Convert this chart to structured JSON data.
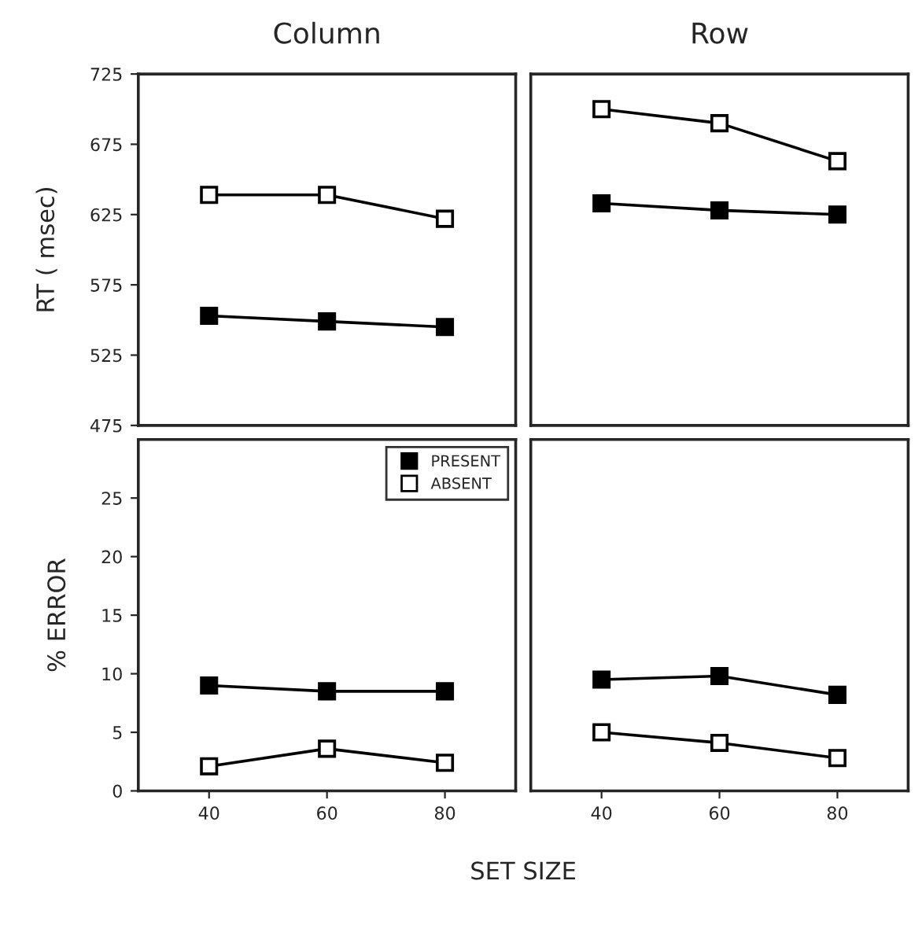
{
  "chart_data": [
    {
      "type": "line",
      "title": "Column",
      "ylabel": "RT ( msec)",
      "x": [
        40,
        60,
        80
      ],
      "xlim": [
        28,
        92
      ],
      "ylim": [
        475,
        725
      ],
      "yticks": [
        475,
        525,
        575,
        625,
        675,
        725
      ],
      "tick_labels": "y",
      "marker": "square",
      "grid": false,
      "legend": false,
      "series": [
        {
          "color": "#000000",
          "values": [
            553,
            549,
            545
          ]
        },
        {
          "color": "#ffffff",
          "values": [
            639,
            639,
            622
          ]
        }
      ]
    },
    {
      "type": "line",
      "title": "Row",
      "x": [
        40,
        60,
        80
      ],
      "xlim": [
        28,
        92
      ],
      "ylim": [
        475,
        725
      ],
      "tick_labels": false,
      "marker": "square",
      "grid": false,
      "legend": false,
      "series": [
        {
          "color": "#000000",
          "values": [
            633,
            628,
            625
          ]
        },
        {
          "color": "#ffffff",
          "values": [
            700,
            690,
            663
          ]
        }
      ]
    },
    {
      "type": "line",
      "ylabel": "% ERROR",
      "xlabel": "SET SIZE",
      "x": [
        40,
        60,
        80
      ],
      "xlim": [
        28,
        92
      ],
      "xticks": [
        40,
        60,
        80
      ],
      "ylim": [
        0,
        30
      ],
      "yticks": [
        0,
        5,
        10,
        15,
        20,
        25
      ],
      "marker": "square",
      "grid": false,
      "legend": "top right",
      "series": [
        {
          "name": "PRESENT",
          "color": "#000000",
          "values": [
            9.0,
            8.5,
            8.5
          ]
        },
        {
          "name": "ABSENT",
          "color": "#ffffff",
          "values": [
            2.1,
            3.6,
            2.4
          ]
        }
      ]
    },
    {
      "type": "line",
      "x": [
        40,
        60,
        80
      ],
      "xlim": [
        28,
        92
      ],
      "xticks": [
        40,
        60,
        80
      ],
      "ylim": [
        0,
        30
      ],
      "tick_labels": "x",
      "marker": "square",
      "grid": false,
      "legend": false,
      "series": [
        {
          "color": "#000000",
          "values": [
            9.5,
            9.8,
            8.2
          ]
        },
        {
          "color": "#ffffff",
          "values": [
            5.0,
            4.1,
            2.8
          ]
        }
      ]
    }
  ]
}
